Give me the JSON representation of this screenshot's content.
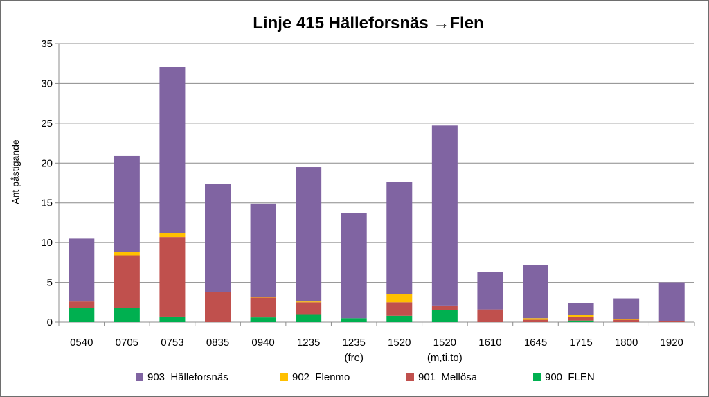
{
  "chart_data": {
    "type": "bar",
    "stacked": true,
    "title": "Linje 415 Hälleforsnäs →Flen",
    "xlabel": "",
    "ylabel": "Ant påstigande",
    "ylim": [
      0,
      35
    ],
    "yticks": [
      0,
      5,
      10,
      15,
      20,
      25,
      30,
      35
    ],
    "grid": true,
    "legend_position": "bottom",
    "categories": [
      "0540",
      "0705",
      "0753",
      "0835",
      "0940",
      "1235",
      "1235\n(fre)",
      "1520",
      "1520\n(m,ti,to)",
      "1610",
      "1645",
      "1715",
      "1800",
      "1920"
    ],
    "series": [
      {
        "name": "900  FLEN",
        "color": "#00b050",
        "values": [
          1.8,
          1.8,
          0.7,
          0,
          0.6,
          1.0,
          0.5,
          0.8,
          1.5,
          0,
          0,
          0.2,
          0,
          0
        ]
      },
      {
        "name": "901  Mellösa",
        "color": "#c0504d",
        "values": [
          0.8,
          6.6,
          10.0,
          3.8,
          2.5,
          1.5,
          0,
          1.7,
          0.6,
          1.6,
          0.3,
          0.5,
          0.3,
          0.1
        ]
      },
      {
        "name": "902  Flenmo",
        "color": "#ffc000",
        "values": [
          0,
          0.4,
          0.5,
          0,
          0.1,
          0.1,
          0,
          1.0,
          0,
          0,
          0.2,
          0.2,
          0.1,
          0
        ]
      },
      {
        "name": "903  Hälleforsnäs",
        "color": "#8064a2",
        "values": [
          7.9,
          12.1,
          20.9,
          13.6,
          11.7,
          16.9,
          13.2,
          14.1,
          22.6,
          4.7,
          6.7,
          1.5,
          2.6,
          4.9
        ]
      }
    ],
    "legend_order": [
      3,
      2,
      1,
      0
    ]
  }
}
